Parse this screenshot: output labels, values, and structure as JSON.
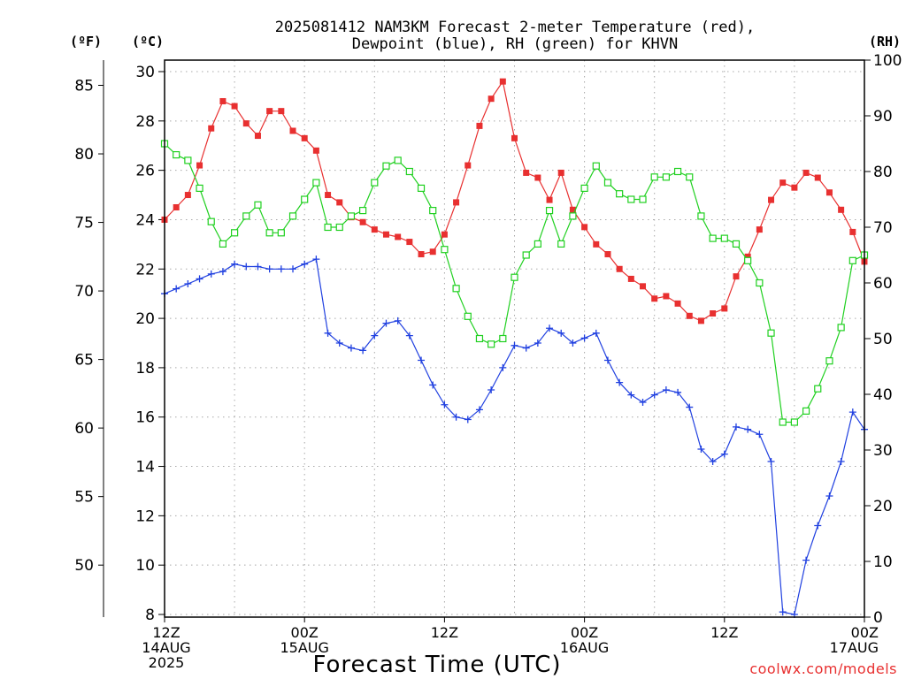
{
  "chart_data": {
    "type": "line",
    "title_line1": "2025081412 NAM3KM Forecast 2-meter Temperature (red),",
    "title_line2": "Dewpoint (blue), RH (green) for KHVN",
    "xlabel": "Forecast Time (UTC)",
    "unit_labels": {
      "fahrenheit": "(ºF)",
      "celsius": "(ºC)",
      "rh": "(RH)"
    },
    "credit": "coolwx.com/models",
    "x_ticks": [
      {
        "hour": 0,
        "lines": [
          "12Z",
          "14AUG",
          "2025"
        ]
      },
      {
        "hour": 12,
        "lines": [
          "00Z",
          "15AUG"
        ]
      },
      {
        "hour": 24,
        "lines": [
          "12Z"
        ]
      },
      {
        "hour": 36,
        "lines": [
          "00Z",
          "16AUG"
        ]
      },
      {
        "hour": 48,
        "lines": [
          "12Z"
        ]
      },
      {
        "hour": 60,
        "lines": [
          "00Z",
          "17AUG"
        ]
      }
    ],
    "xlim_hours": [
      0,
      60
    ],
    "celsius_axis": {
      "ylim": [
        8,
        30.5
      ],
      "ticks": [
        "8",
        "10",
        "12",
        "14",
        "16",
        "18",
        "20",
        "22",
        "24",
        "26",
        "28",
        "30"
      ]
    },
    "fahrenheit_axis": {
      "ticks": [
        "50",
        "55",
        "60",
        "65",
        "70",
        "75",
        "80",
        "85"
      ]
    },
    "rh_axis": {
      "ylim": [
        0,
        100
      ],
      "ticks": [
        "0",
        "10",
        "20",
        "30",
        "40",
        "50",
        "60",
        "70",
        "80",
        "90",
        "100"
      ]
    },
    "grid": true,
    "x_hours": [
      0,
      1,
      2,
      3,
      4,
      5,
      6,
      7,
      8,
      9,
      10,
      11,
      12,
      13,
      14,
      15,
      16,
      17,
      18,
      19,
      20,
      21,
      22,
      23,
      24,
      25,
      26,
      27,
      28,
      29,
      30,
      31,
      32,
      33,
      34,
      35,
      36,
      37,
      38,
      39,
      40,
      41,
      42,
      43,
      44,
      45,
      46,
      47,
      48,
      49,
      50,
      51,
      52,
      53,
      54,
      55,
      56,
      57,
      58,
      59,
      60
    ],
    "series": [
      {
        "name": "Temperature",
        "axis": "celsius",
        "color": "#e83030",
        "marker": "filled-square",
        "values": [
          24.0,
          24.5,
          25.0,
          26.2,
          27.7,
          28.8,
          28.6,
          27.9,
          27.4,
          28.4,
          28.4,
          27.6,
          27.3,
          26.8,
          25.0,
          24.7,
          24.1,
          23.9,
          23.6,
          23.4,
          23.3,
          23.1,
          22.6,
          22.7,
          23.4,
          24.7,
          26.2,
          27.8,
          28.9,
          29.6,
          27.3,
          25.9,
          25.7,
          24.8,
          25.9,
          24.4,
          23.7,
          23.0,
          22.6,
          22.0,
          21.6,
          21.3,
          20.8,
          20.9,
          20.6,
          20.1,
          19.9,
          20.2,
          20.4,
          21.7,
          22.5,
          23.6,
          24.8,
          25.5,
          25.3,
          25.9,
          25.7,
          25.1,
          24.4,
          23.5,
          22.3
        ]
      },
      {
        "name": "Dewpoint",
        "axis": "celsius",
        "color": "#2040e0",
        "marker": "plus",
        "values": [
          21.0,
          21.2,
          21.4,
          21.6,
          21.8,
          21.9,
          22.2,
          22.1,
          22.1,
          22.0,
          22.0,
          22.0,
          22.2,
          22.4,
          19.4,
          19.0,
          18.8,
          18.7,
          19.3,
          19.8,
          19.9,
          19.3,
          18.3,
          17.3,
          16.5,
          16.0,
          15.9,
          16.3,
          17.1,
          18.0,
          18.9,
          18.8,
          19.0,
          19.6,
          19.4,
          19.0,
          19.2,
          19.4,
          18.3,
          17.4,
          16.9,
          16.6,
          16.9,
          17.1,
          17.0,
          16.4,
          14.7,
          14.2,
          14.5,
          15.6,
          15.5,
          15.3,
          14.2,
          8.1,
          8.0,
          10.2,
          11.6,
          12.8,
          14.2,
          16.2,
          15.5
        ]
      },
      {
        "name": "RH",
        "axis": "rh",
        "color": "#20d020",
        "marker": "open-square",
        "values": [
          85,
          83,
          82,
          77,
          71,
          67,
          69,
          72,
          74,
          69,
          69,
          72,
          75,
          78,
          70,
          70,
          72,
          73,
          78,
          81,
          82,
          80,
          77,
          73,
          66,
          59,
          54,
          50,
          49,
          50,
          61,
          65,
          67,
          73,
          67,
          72,
          77,
          81,
          78,
          76,
          75,
          75,
          79,
          79,
          80,
          79,
          72,
          68,
          68,
          67,
          64,
          60,
          51,
          35,
          35,
          37,
          41,
          46,
          52,
          64,
          65
        ]
      }
    ]
  }
}
